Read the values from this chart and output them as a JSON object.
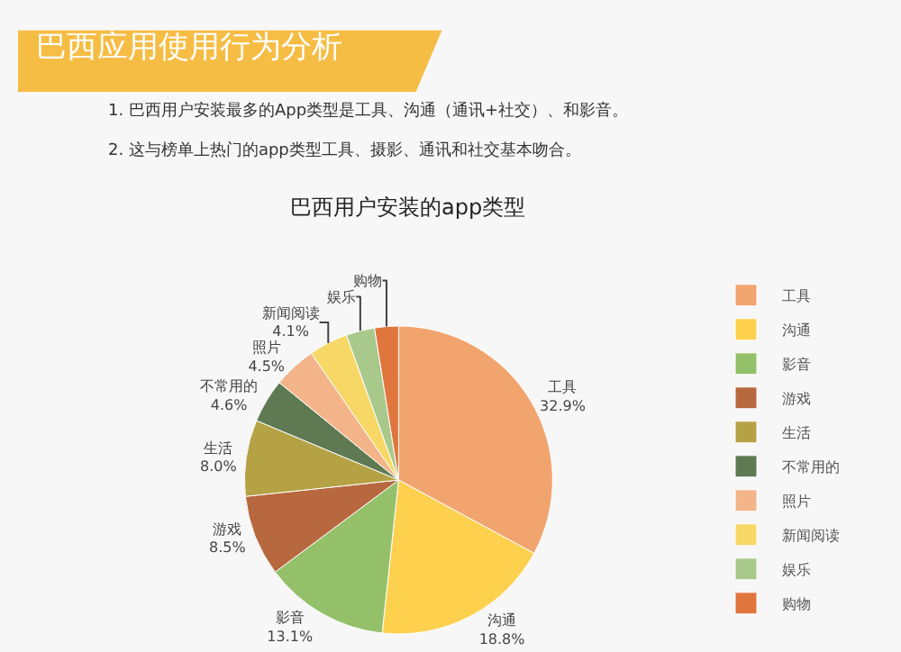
{
  "chart_data": {
    "type": "pie",
    "title": "巴西应用使用行为分析",
    "subtitle": "巴西用户安装的app类型",
    "annotations": [
      "1. 巴西用户安装最多的App类型是工具、沟通（通讯+社交）、和影音。",
      "2. 这与榜单上热门的app类型工具、摄影、通讯和社交基本吻合。"
    ],
    "categories": [
      "工具",
      "沟通",
      "影音",
      "游戏",
      "生活",
      "不常用的",
      "照片",
      "新闻阅读",
      "娱乐",
      "购物"
    ],
    "values": [
      32.9,
      18.8,
      13.1,
      8.5,
      8.0,
      4.6,
      4.5,
      4.1,
      3.0,
      2.5
    ],
    "colors": [
      "#f2a46e",
      "#fdd04e",
      "#94c06a",
      "#b8683e",
      "#b4a244",
      "#5f7a52",
      "#f3b48a",
      "#f7d866",
      "#a9c98c",
      "#e0753e"
    ],
    "value_labels": [
      "32.9%",
      "18.8%",
      "13.1%",
      "8.5%",
      "8.0%",
      "4.6%",
      "4.5%",
      "4.1%",
      null,
      null
    ],
    "legend": "right"
  }
}
